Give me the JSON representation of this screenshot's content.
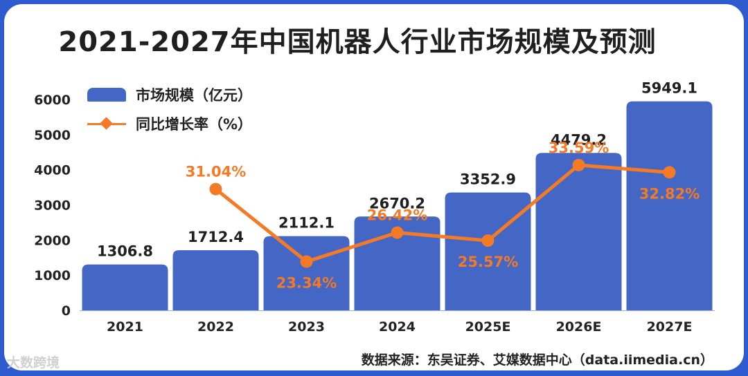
{
  "title": "2021-2027年中国机器人行业市场规模及预测",
  "legend": {
    "bar_label": "市场规模（亿元）",
    "line_label": "同比增长率（%）"
  },
  "source": "数据来源：东吴证券、艾媒数据中心（data.iimedia.cn）",
  "watermark": "大数跨境",
  "colors": {
    "bar": "#4466c4",
    "line": "#f47a25",
    "frame": "#2f5bd0"
  },
  "chart_data": {
    "type": "bar",
    "categories": [
      "2021",
      "2022",
      "2023",
      "2024",
      "2025E",
      "2026E",
      "2027E"
    ],
    "series": [
      {
        "name": "市场规模（亿元）",
        "type": "bar",
        "values": [
          1306.8,
          1712.4,
          2112.1,
          2670.2,
          3352.9,
          4479.2,
          5949.1
        ],
        "labels": [
          "1306.8",
          "1712.4",
          "2112.1",
          "2670.2",
          "3352.9",
          "4479.2",
          "5949.1"
        ]
      },
      {
        "name": "同比增长率（%）",
        "type": "line",
        "values": [
          null,
          31.04,
          23.34,
          26.42,
          25.57,
          33.59,
          32.82
        ],
        "labels": [
          "",
          "31.04%",
          "23.34%",
          "26.42%",
          "25.57%",
          "33.59%",
          "32.82%"
        ]
      }
    ],
    "yticks": [
      "0",
      "1000",
      "2000",
      "3000",
      "4000",
      "5000",
      "6000"
    ],
    "ylim": [
      0,
      6000
    ],
    "xlabel": "",
    "ylabel": "",
    "grid": false,
    "legend_position": "top-left"
  }
}
